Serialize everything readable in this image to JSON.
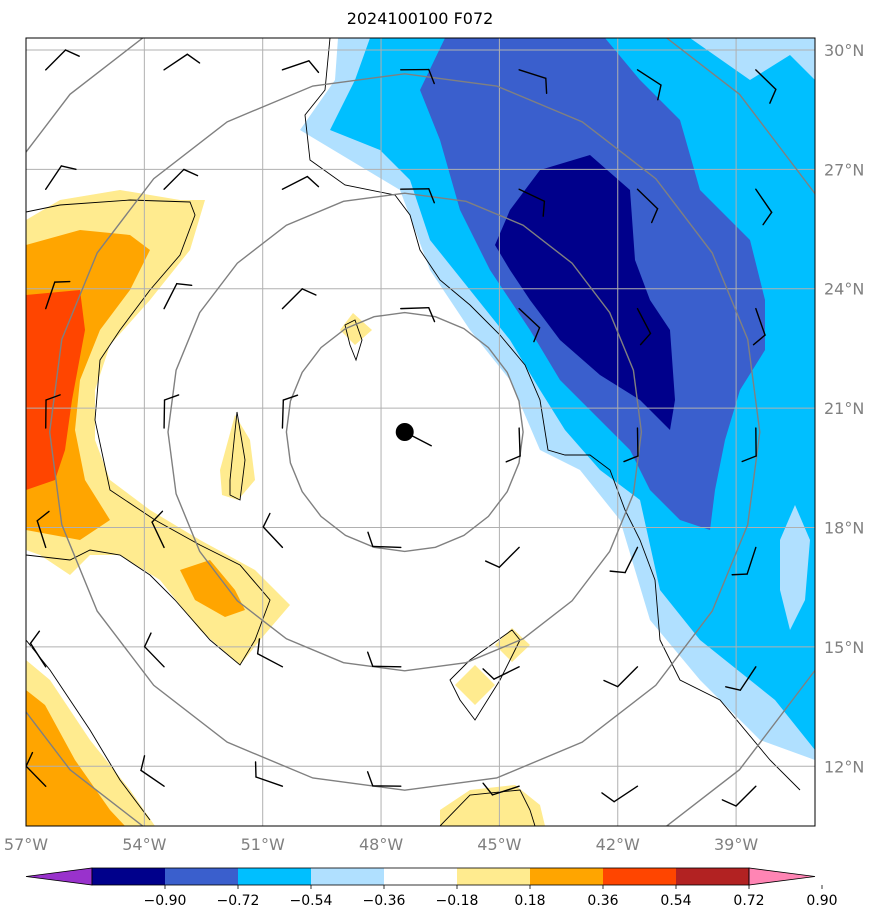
{
  "title": "2024100100 F072",
  "x_ticks": [
    {
      "lon": -57,
      "label": "57°W"
    },
    {
      "lon": -54,
      "label": "54°W"
    },
    {
      "lon": -51,
      "label": "51°W"
    },
    {
      "lon": -48,
      "label": "48°W"
    },
    {
      "lon": -45,
      "label": "45°W"
    },
    {
      "lon": -42,
      "label": "42°W"
    },
    {
      "lon": -39,
      "label": "39°W"
    }
  ],
  "y_ticks": [
    {
      "lat": 30,
      "label": "30°N"
    },
    {
      "lat": 27,
      "label": "27°N"
    },
    {
      "lat": 24,
      "label": "24°N"
    },
    {
      "lat": 21,
      "label": "21°N"
    },
    {
      "lat": 18,
      "label": "18°N"
    },
    {
      "lat": 15,
      "label": "15°N"
    },
    {
      "lat": 12,
      "label": "12°N"
    }
  ],
  "colorbar": {
    "labels": [
      "−0.90",
      "−0.72",
      "−0.54",
      "−0.36",
      "−0.18",
      "0.18",
      "0.36",
      "0.54",
      "0.72",
      "0.90"
    ],
    "colors": [
      "#9932cc",
      "#00008b",
      "#3a5fcd",
      "#00bfff",
      "#b0e0ff",
      "#ffffff",
      "#ffeb8f",
      "#ffa500",
      "#ff4500",
      "#b22222",
      "#ff85b4"
    ]
  },
  "map": {
    "lon_range": [
      -57,
      -37
    ],
    "lat_range": [
      10.5,
      30.3
    ],
    "center": {
      "lon": -47.4,
      "lat": 20.4
    },
    "range_ring_radii_deg": [
      3,
      6,
      9,
      12
    ],
    "projection": "PlateCarree"
  }
}
